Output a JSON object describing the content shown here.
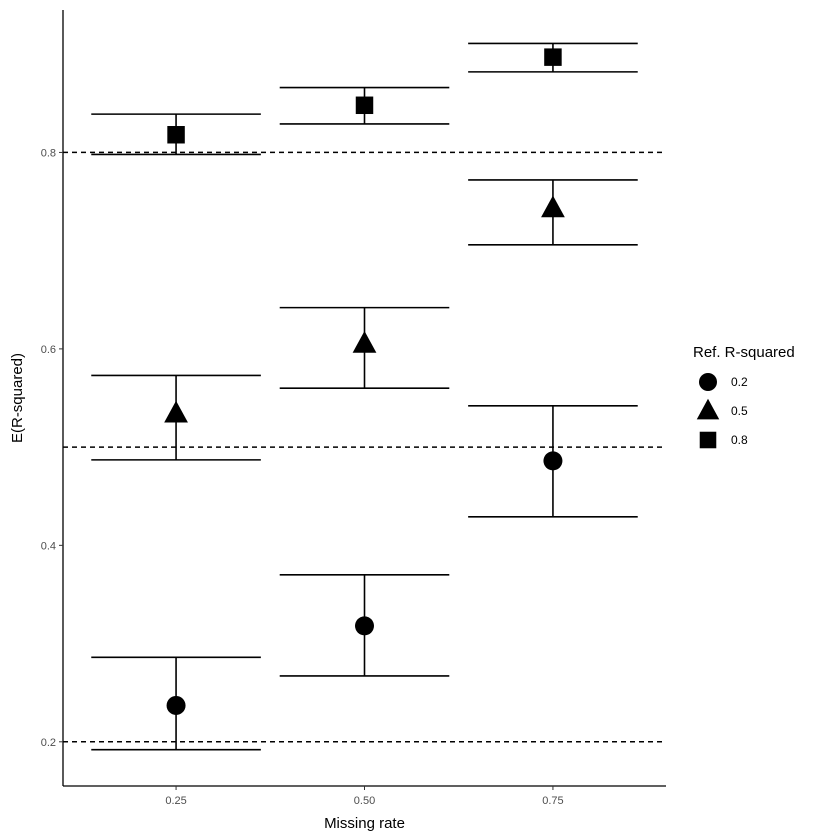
{
  "chart_data": {
    "type": "scatter",
    "xlabel": "Missing rate",
    "ylabel": "E(R-squared)",
    "x_ticks": [
      "0.25",
      "0.50",
      "0.75"
    ],
    "y_ticks": [
      "0.2",
      "0.4",
      "0.6",
      "0.8"
    ],
    "xlim": [
      0.1,
      0.9
    ],
    "ylim": [
      0.155,
      0.945
    ],
    "reference_lines": [
      0.2,
      0.5,
      0.8
    ],
    "legend": {
      "title": "Ref. R-squared",
      "placement": "right",
      "entries": [
        {
          "label": "0.2",
          "shape": "circle"
        },
        {
          "label": "0.5",
          "shape": "triangle"
        },
        {
          "label": "0.8",
          "shape": "square"
        }
      ]
    },
    "series": [
      {
        "name": "0.2",
        "shape": "circle",
        "points": [
          {
            "x": 0.25,
            "y": 0.237,
            "ymin": 0.192,
            "ymax": 0.286
          },
          {
            "x": 0.5,
            "y": 0.318,
            "ymin": 0.267,
            "ymax": 0.37
          },
          {
            "x": 0.75,
            "y": 0.486,
            "ymin": 0.429,
            "ymax": 0.542
          }
        ]
      },
      {
        "name": "0.5",
        "shape": "triangle",
        "points": [
          {
            "x": 0.25,
            "y": 0.534,
            "ymin": 0.487,
            "ymax": 0.573
          },
          {
            "x": 0.5,
            "y": 0.605,
            "ymin": 0.56,
            "ymax": 0.642
          },
          {
            "x": 0.75,
            "y": 0.743,
            "ymin": 0.706,
            "ymax": 0.772
          }
        ]
      },
      {
        "name": "0.8",
        "shape": "square",
        "points": [
          {
            "x": 0.25,
            "y": 0.818,
            "ymin": 0.798,
            "ymax": 0.839
          },
          {
            "x": 0.5,
            "y": 0.848,
            "ymin": 0.829,
            "ymax": 0.866
          },
          {
            "x": 0.75,
            "y": 0.897,
            "ymin": 0.882,
            "ymax": 0.911
          }
        ]
      }
    ],
    "errorbar_width": 0.225,
    "grid": false,
    "colors": {
      "marks": "#000000",
      "tick_text": "#4d4d4d",
      "background": "#ffffff"
    }
  }
}
